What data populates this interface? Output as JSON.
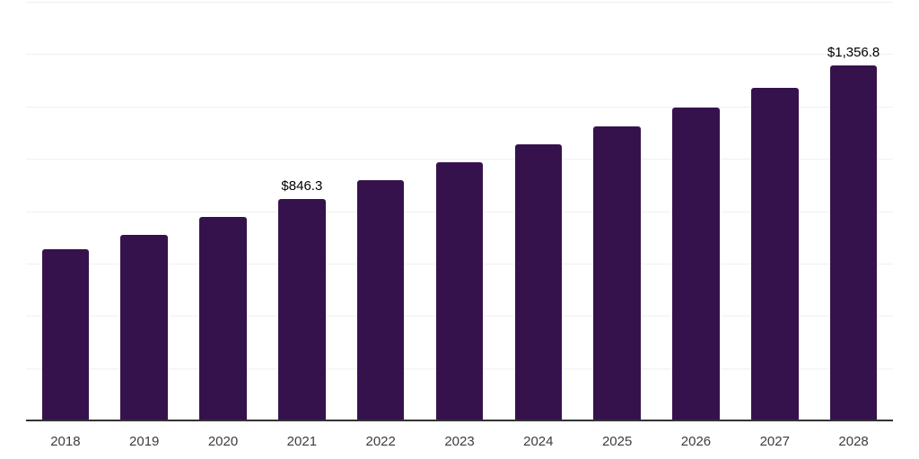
{
  "page": {
    "background": "#ffffff"
  },
  "chart_data": {
    "type": "bar",
    "title": "",
    "xlabel": "",
    "ylabel": "",
    "categories": [
      "2018",
      "2019",
      "2020",
      "2021",
      "2022",
      "2023",
      "2024",
      "2025",
      "2026",
      "2027",
      "2028"
    ],
    "values": [
      652.8,
      709.9,
      778.3,
      846.3,
      919.7,
      988.1,
      1055.6,
      1123.9,
      1195.8,
      1272.1,
      1356.8
    ],
    "data_labels": [
      "",
      "",
      "",
      "$846.3",
      "",
      "",
      "",
      "",
      "",
      "",
      "$1,356.8"
    ],
    "ylim": [
      0,
      1600
    ],
    "grid_step": 200,
    "grid_on": true,
    "y_tick_labels_visible": false,
    "legend_position": "none",
    "colors": {
      "bar": "#36124d",
      "axis": "#333333",
      "grid": "#f0f0f0",
      "data_label": "#000000",
      "tick_label": "#3d3d3d"
    }
  }
}
